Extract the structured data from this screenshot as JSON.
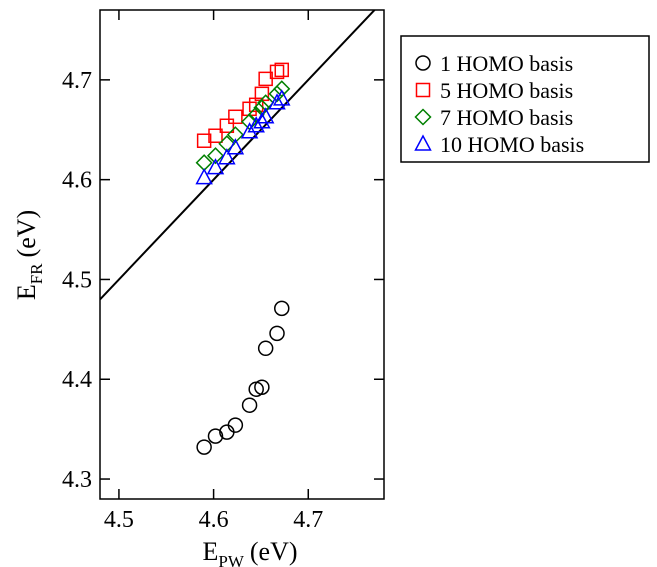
{
  "chart_data": {
    "type": "scatter",
    "xlabel": {
      "main": "E",
      "sub": "PW",
      "unit": "(eV)"
    },
    "ylabel": {
      "main": "E",
      "sub": "FR",
      "unit": "(eV)"
    },
    "xlim": [
      4.48,
      4.78
    ],
    "ylim": [
      4.28,
      4.77
    ],
    "x_ticks": [
      "4.5",
      "4.6",
      "4.7"
    ],
    "y_ticks": [
      "4.3",
      "4.4",
      "4.5",
      "4.6",
      "4.7"
    ],
    "x_tick_values": [
      4.5,
      4.6,
      4.7
    ],
    "y_tick_values": [
      4.3,
      4.4,
      4.5,
      4.6,
      4.7
    ],
    "grid": false,
    "legend_position": "outside-right",
    "reference_line": {
      "slope": 1,
      "intercept": 0,
      "color": "#000000"
    },
    "series": [
      {
        "name": "1 HOMO basis",
        "marker": "circle",
        "color": "#000000",
        "points": [
          [
            4.59,
            4.332
          ],
          [
            4.602,
            4.343
          ],
          [
            4.614,
            4.347
          ],
          [
            4.623,
            4.354
          ],
          [
            4.638,
            4.374
          ],
          [
            4.645,
            4.39
          ],
          [
            4.651,
            4.392
          ],
          [
            4.655,
            4.431
          ],
          [
            4.667,
            4.446
          ],
          [
            4.672,
            4.471
          ]
        ]
      },
      {
        "name": "5 HOMO basis",
        "marker": "square",
        "color": "#ff0000",
        "points": [
          [
            4.59,
            4.639
          ],
          [
            4.602,
            4.644
          ],
          [
            4.614,
            4.654
          ],
          [
            4.623,
            4.663
          ],
          [
            4.638,
            4.671
          ],
          [
            4.645,
            4.675
          ],
          [
            4.651,
            4.686
          ],
          [
            4.655,
            4.701
          ],
          [
            4.667,
            4.708
          ],
          [
            4.672,
            4.71
          ]
        ]
      },
      {
        "name": "7 HOMO basis",
        "marker": "diamond",
        "color": "#008000",
        "points": [
          [
            4.59,
            4.617
          ],
          [
            4.602,
            4.624
          ],
          [
            4.614,
            4.636
          ],
          [
            4.623,
            4.645
          ],
          [
            4.638,
            4.658
          ],
          [
            4.645,
            4.665
          ],
          [
            4.651,
            4.672
          ],
          [
            4.655,
            4.677
          ],
          [
            4.667,
            4.686
          ],
          [
            4.672,
            4.691
          ]
        ]
      },
      {
        "name": "10 HOMO basis",
        "marker": "triangle",
        "color": "#0000ff",
        "points": [
          [
            4.59,
            4.602
          ],
          [
            4.602,
            4.612
          ],
          [
            4.614,
            4.622
          ],
          [
            4.623,
            4.632
          ],
          [
            4.638,
            4.648
          ],
          [
            4.645,
            4.654
          ],
          [
            4.651,
            4.658
          ],
          [
            4.655,
            4.663
          ],
          [
            4.667,
            4.677
          ],
          [
            4.672,
            4.681
          ]
        ]
      }
    ]
  }
}
